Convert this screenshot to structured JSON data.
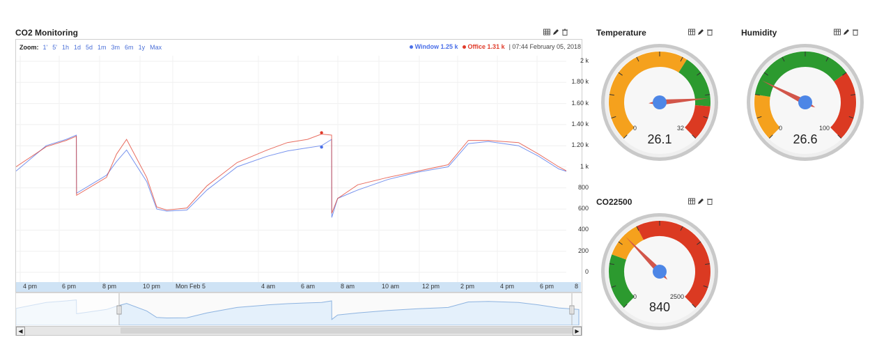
{
  "co2": {
    "title": "CO2 Monitoring",
    "zoom_label": "Zoom:",
    "zoom_options": [
      "1'",
      "5'",
      "1h",
      "1d",
      "5d",
      "1m",
      "3m",
      "6m",
      "1y",
      "Max"
    ],
    "legend": {
      "window_label": "Window 1.25 k",
      "office_label": "Office 1.31 k",
      "timestamp": "| 07:44 February 05, 2018"
    },
    "colors": {
      "window": "#4a6fe8",
      "office": "#e03b2a"
    }
  },
  "chart_data": {
    "type": "line",
    "title": "CO2 Monitoring",
    "ylim": [
      0,
      2000
    ],
    "y_ticks": [
      "2 k",
      "1.80 k",
      "1.60 k",
      "1.40 k",
      "1.20 k",
      "1 k",
      "800",
      "600",
      "400",
      "200",
      "0"
    ],
    "x_ticks": [
      "4 pm",
      "6 pm",
      "8 pm",
      "10 pm",
      "Mon Feb 5",
      "4 am",
      "6 am",
      "8 am",
      "10 am",
      "12 pm",
      "2 pm",
      "4 pm",
      "6 pm",
      "8"
    ],
    "grid": true,
    "legend_position": "top-right",
    "x_hours": [
      0,
      1.5,
      2.5,
      3.0,
      3.01,
      4.5,
      5.0,
      5.5,
      6.5,
      7.0,
      7.5,
      8.5,
      9.5,
      11.0,
      12.5,
      13.5,
      14.5,
      15.2,
      15.7,
      15.71,
      16.0,
      17.0,
      18.5,
      20.0,
      21.5,
      22.5,
      23.5,
      25.0,
      26.0,
      27.0,
      28.0
    ],
    "series": [
      {
        "name": "Window",
        "values": [
          960,
          1200,
          1260,
          1300,
          750,
          920,
          1050,
          1160,
          860,
          600,
          580,
          590,
          780,
          1000,
          1100,
          1150,
          1180,
          1200,
          1260,
          520,
          700,
          780,
          880,
          950,
          1000,
          1220,
          1240,
          1200,
          1100,
          980,
          920
        ]
      },
      {
        "name": "Office",
        "values": [
          1000,
          1190,
          1250,
          1290,
          730,
          900,
          1120,
          1260,
          900,
          620,
          590,
          610,
          820,
          1040,
          1160,
          1230,
          1260,
          1310,
          1300,
          560,
          700,
          830,
          900,
          960,
          1020,
          1250,
          1250,
          1230,
          1120,
          1000,
          900
        ]
      }
    ]
  },
  "temperature": {
    "title": "Temperature",
    "min": "0",
    "max": "32",
    "value": "26.1",
    "fraction": 0.816
  },
  "humidity": {
    "title": "Humidity",
    "min": "0",
    "max": "100",
    "value": "26.6",
    "fraction": 0.266
  },
  "co22500": {
    "title": "CO22500",
    "min": "0",
    "max": "2500",
    "value": "840",
    "fraction": 0.336
  }
}
